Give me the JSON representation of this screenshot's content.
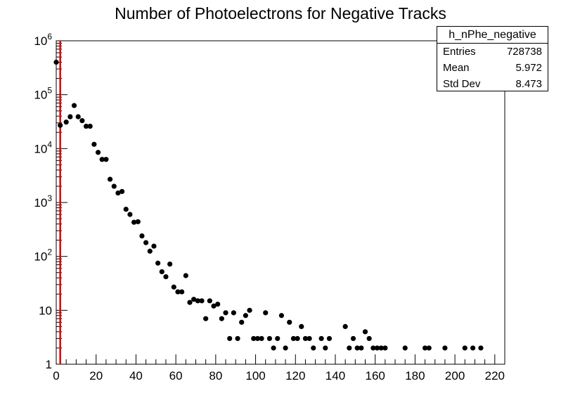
{
  "chart_data": {
    "type": "scatter",
    "title": "Number of Photoelectrons for Negative Tracks",
    "xlabel": "",
    "ylabel": "",
    "xlim": [
      0,
      225
    ],
    "ylim": [
      1,
      1000000
    ],
    "yscale": "log",
    "grid": false,
    "x_ticks": [
      "0",
      "20",
      "40",
      "60",
      "80",
      "100",
      "120",
      "140",
      "160",
      "180",
      "200",
      "220"
    ],
    "y_ticks": [
      {
        "base": "1",
        "exp": "",
        "value": 1
      },
      {
        "base": "10",
        "exp": "",
        "value": 10
      },
      {
        "base": "10",
        "exp": "2",
        "value": 100
      },
      {
        "base": "10",
        "exp": "3",
        "value": 1000
      },
      {
        "base": "10",
        "exp": "4",
        "value": 10000
      },
      {
        "base": "10",
        "exp": "5",
        "value": 100000
      },
      {
        "base": "10",
        "exp": "6",
        "value": 1000000
      }
    ],
    "cut_line_x": 2,
    "marker_color": "#000000",
    "cut_line_color": "#e00000",
    "series": [
      {
        "x": [
          0,
          2,
          5,
          7,
          9,
          11,
          13,
          15,
          17,
          19,
          21,
          23,
          25,
          27,
          29,
          31,
          33,
          35,
          37,
          39,
          41,
          43,
          45,
          47,
          49,
          51,
          53,
          55,
          57,
          59,
          61,
          63,
          65,
          67,
          69,
          71,
          73,
          75,
          77,
          79,
          81,
          83,
          85,
          87,
          89,
          91,
          93,
          95,
          97,
          99,
          101,
          103,
          105,
          107,
          109,
          111,
          113,
          115,
          117,
          119,
          121,
          123,
          125,
          127,
          129,
          133,
          135,
          137,
          145,
          147,
          149,
          151,
          153,
          155,
          157,
          159,
          161,
          163,
          165,
          175,
          185,
          187,
          195,
          205,
          209,
          213
        ],
        "y": [
          400000,
          27000,
          31000,
          39000,
          63000,
          39000,
          33000,
          26000,
          26000,
          12000,
          8500,
          6300,
          6300,
          2700,
          2000,
          1500,
          1600,
          750,
          600,
          430,
          440,
          240,
          180,
          125,
          155,
          75,
          52,
          42,
          72,
          27,
          22,
          22,
          44,
          14,
          16,
          15,
          15,
          7,
          15,
          12,
          13,
          7,
          9,
          3,
          9,
          3,
          6,
          8,
          10,
          3,
          3,
          3,
          9,
          3,
          2,
          3,
          8,
          2,
          6,
          3,
          3,
          5,
          3,
          3,
          2,
          3,
          2,
          3,
          5,
          2,
          3,
          2,
          2,
          4,
          3,
          2,
          2,
          2,
          2,
          2,
          2,
          2,
          2,
          2,
          2,
          2
        ]
      }
    ]
  },
  "stats": {
    "title": "h_nPhe_negative",
    "rows": [
      {
        "key": "Entries",
        "value": "728738"
      },
      {
        "key": "Mean",
        "value": "5.972"
      },
      {
        "key": "Std Dev",
        "value": "8.473"
      }
    ]
  }
}
